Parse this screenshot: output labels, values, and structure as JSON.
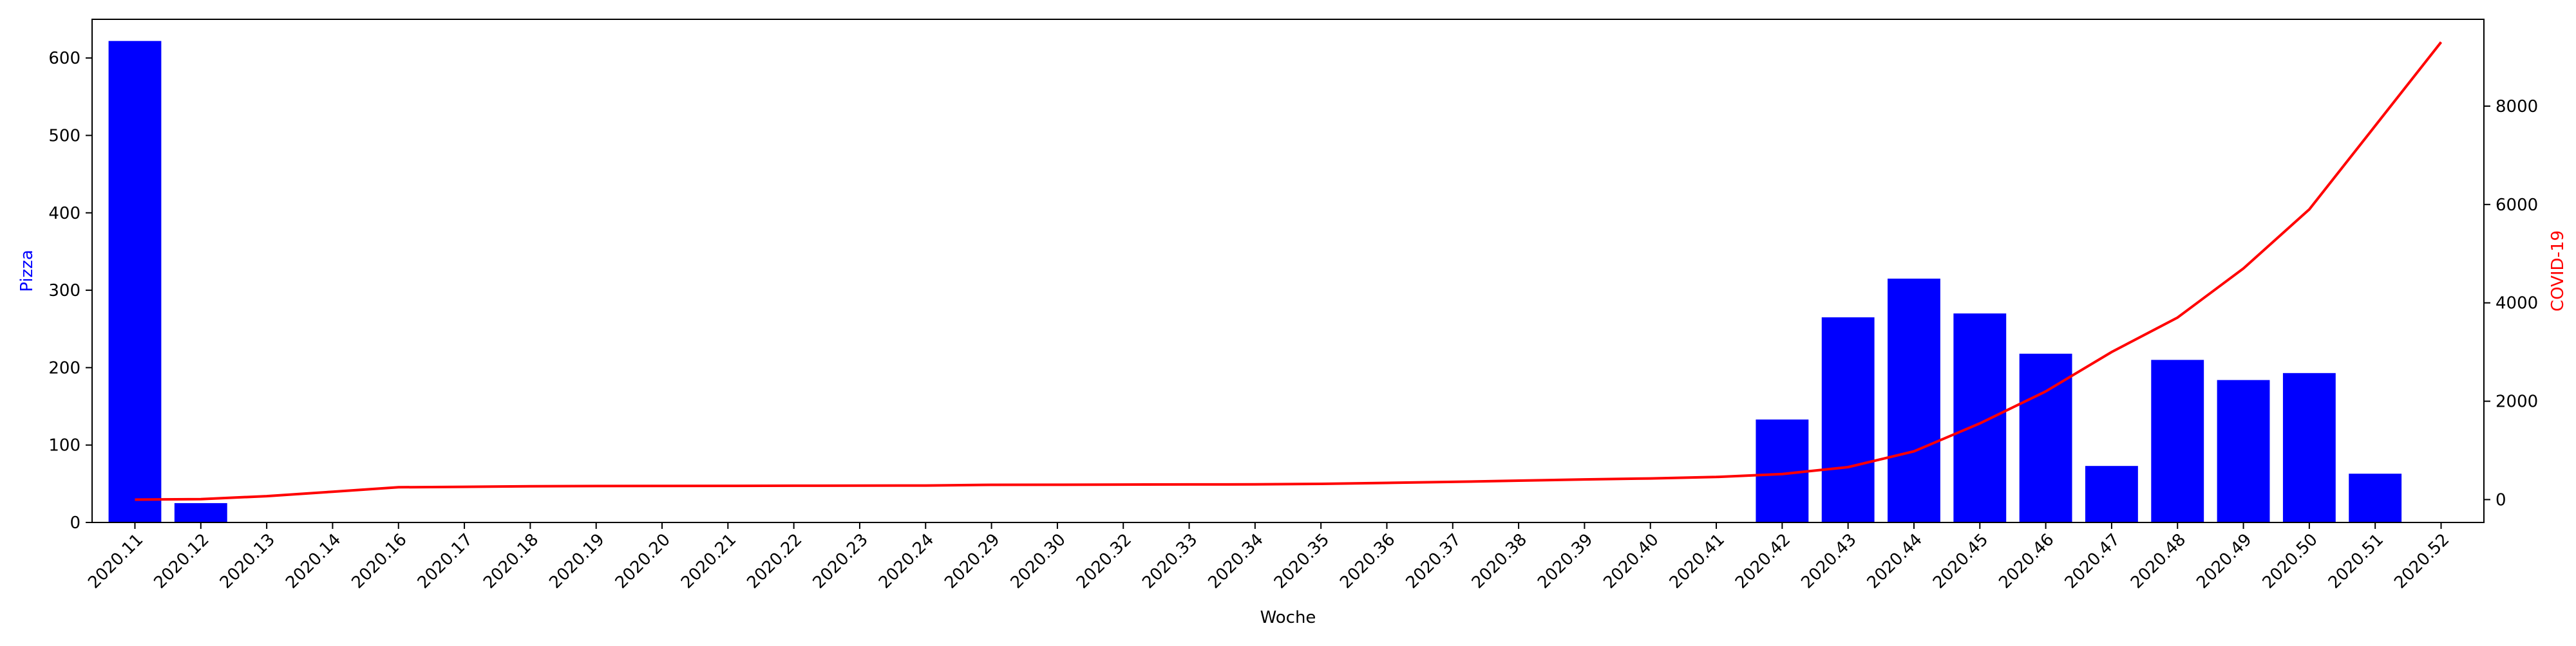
{
  "chart_data": {
    "type": "bar",
    "title": "",
    "xlabel": "Woche",
    "ylabel_left": "Pizza",
    "ylabel_right": "COVID-19",
    "colors": {
      "bars": "#0000ff",
      "line": "#ff0000",
      "axes": "#000000"
    },
    "categories": [
      "2020.11",
      "2020.12",
      "2020.13",
      "2020.14",
      "2020.16",
      "2020.17",
      "2020.18",
      "2020.19",
      "2020.20",
      "2020.21",
      "2020.22",
      "2020.23",
      "2020.24",
      "2020.29",
      "2020.30",
      "2020.32",
      "2020.33",
      "2020.34",
      "2020.35",
      "2020.36",
      "2020.37",
      "2020.38",
      "2020.39",
      "2020.40",
      "2020.41",
      "2020.42",
      "2020.43",
      "2020.44",
      "2020.45",
      "2020.46",
      "2020.47",
      "2020.48",
      "2020.49",
      "2020.50",
      "2020.51",
      "2020.52"
    ],
    "series": [
      {
        "name": "Pizza",
        "type": "bar",
        "axis": "left",
        "values": [
          622,
          25,
          0,
          0,
          0,
          0,
          0,
          0,
          0,
          0,
          0,
          0,
          0,
          0,
          0,
          0,
          0,
          0,
          0,
          0,
          0,
          0,
          0,
          0,
          0,
          133,
          265,
          315,
          270,
          218,
          73,
          210,
          184,
          193,
          63,
          0
        ]
      },
      {
        "name": "COVID-19",
        "type": "line",
        "axis": "right",
        "values": [
          0,
          10,
          70,
          160,
          250,
          260,
          270,
          275,
          278,
          280,
          282,
          284,
          286,
          300,
          302,
          305,
          308,
          310,
          320,
          340,
          360,
          385,
          410,
          430,
          460,
          520,
          660,
          980,
          1550,
          2200,
          3000,
          3700,
          4700,
          5900,
          7600,
          9300
        ]
      }
    ],
    "ylim_left": [
      0,
      650
    ],
    "yticks_left": [
      0,
      100,
      200,
      300,
      400,
      500,
      600
    ],
    "ylim_right": [
      -465,
      9765
    ],
    "yticks_right": [
      0,
      2000,
      4000,
      6000,
      8000
    ],
    "grid": false,
    "legend": "none"
  }
}
